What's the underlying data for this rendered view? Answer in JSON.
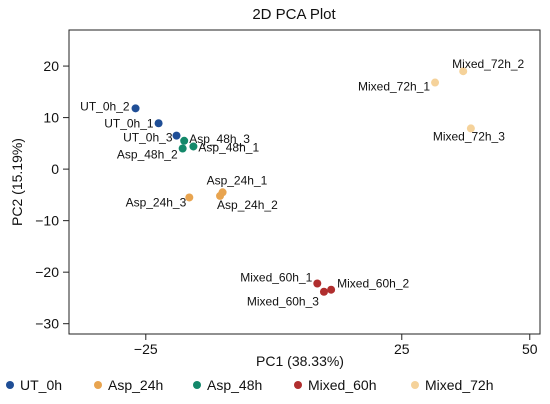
{
  "chart_data": {
    "type": "scatter",
    "title": "2D PCA Plot",
    "xlabel": "PC1 (38.33%)",
    "ylabel": "PC2 (15.19%)",
    "xlim": [
      -40,
      52
    ],
    "ylim": [
      -32,
      27
    ],
    "xticks": [
      -25,
      25,
      50
    ],
    "yticks": [
      20,
      10,
      0,
      -10,
      -20,
      -30
    ],
    "legend_position": "bottom",
    "grid": false,
    "series": [
      {
        "name": "UT_0h",
        "color": "#1f4e96",
        "points": [
          {
            "label": "UT_0h_2",
            "x": -27,
            "y": 11.8
          },
          {
            "label": "UT_0h_1",
            "x": -22.5,
            "y": 8.9
          },
          {
            "label": "UT_0h_3",
            "x": -19,
            "y": 6.5
          }
        ]
      },
      {
        "name": "Asp_24h",
        "color": "#e8a44f",
        "points": [
          {
            "label": "Asp_24h_1",
            "x": -10,
            "y": -4.5
          },
          {
            "label": "Asp_24h_3",
            "x": -16.5,
            "y": -5.5
          },
          {
            "label": "Asp_24h_2",
            "x": -10.5,
            "y": -5.2
          }
        ]
      },
      {
        "name": "Asp_48h",
        "color": "#13886a",
        "points": [
          {
            "label": "Asp_48h_3",
            "x": -17.5,
            "y": 5.5
          },
          {
            "label": "Asp_48h_2",
            "x": -17.8,
            "y": 4.0
          },
          {
            "label": "Asp_48h_1",
            "x": -15.7,
            "y": 4.4
          }
        ]
      },
      {
        "name": "Mixed_60h",
        "color": "#b02e2e",
        "points": [
          {
            "label": "Mixed_60h_1",
            "x": 8.5,
            "y": -22.2
          },
          {
            "label": "Mixed_60h_3",
            "x": 9.8,
            "y": -23.8
          },
          {
            "label": "Mixed_60h_2",
            "x": 11.2,
            "y": -23.4
          }
        ]
      },
      {
        "name": "Mixed_72h",
        "color": "#f5d29a",
        "points": [
          {
            "label": "Mixed_72h_1",
            "x": 31.5,
            "y": 16.8
          },
          {
            "label": "Mixed_72h_2",
            "x": 37,
            "y": 19.0
          },
          {
            "label": "Mixed_72h_3",
            "x": 38.5,
            "y": 7.9
          }
        ]
      }
    ]
  }
}
